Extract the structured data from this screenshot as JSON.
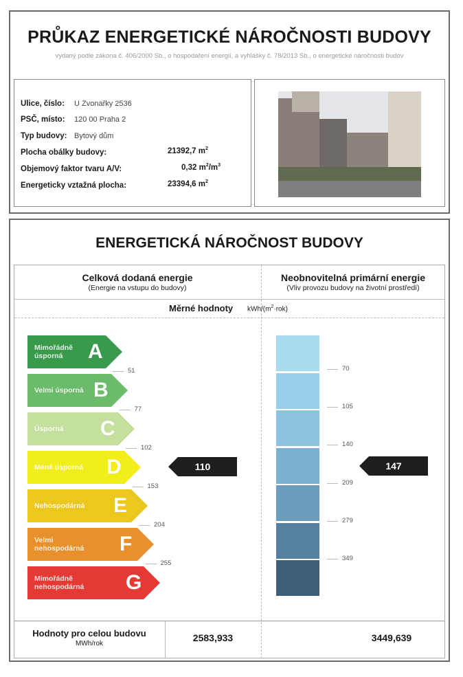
{
  "header": {
    "title": "PRŮKAZ ENERGETICKÉ NÁROČNOSTI BUDOVY",
    "subtitle": "vydaný podle zákona č. 406/2000 Sb., o hospodaření energií, a vyhlášky č. 78/2013 Sb., o energetické náročnosti budov"
  },
  "building": {
    "street_label": "Ulice, číslo:",
    "street": "U Zvonařky 2536",
    "city_label": "PSČ, místo:",
    "city": "120 00  Praha 2",
    "type_label": "Typ budovy:",
    "type": "Bytový dům",
    "envelope_label": "Plocha obálky budovy:",
    "envelope": "21392,7 m",
    "envelope_exp": "2",
    "shape_label": "Objemový faktor tvaru A/V:",
    "shape": "0,32 m",
    "shape_exp": "2",
    "shape_unit": "/m",
    "shape_exp2": "3",
    "area_label": "Energeticky vztažná plocha:",
    "area": "23394,6 m",
    "area_exp": "2"
  },
  "rating": {
    "title": "ENERGETICKÁ NÁROČNOST BUDOVY",
    "left_head": "Celková dodaná energie",
    "left_sub": "(Energie na vstupu do budovy)",
    "right_head": "Neobnovitelná primární energie",
    "right_sub": "(Vliv provozu budovy na životní prostředí)",
    "specific_label": "Měrné hodnoty",
    "unit_a": "kWh/(m",
    "unit_exp": "2",
    "unit_b": "·rok)",
    "classes": [
      {
        "letter": "A",
        "label": "Mimořádně úsporná",
        "color": "#3a9a4c"
      },
      {
        "letter": "B",
        "label": "Velmi úsporná",
        "color": "#6cbb6a"
      },
      {
        "letter": "C",
        "label": "Úsporná",
        "color": "#c5df9c"
      },
      {
        "letter": "D",
        "label": "Méně úsporná",
        "color": "#f2ee1c"
      },
      {
        "letter": "E",
        "label": "Nehospodárná",
        "color": "#ecc71e"
      },
      {
        "letter": "F",
        "label": "Velmi nehospodárná",
        "color": "#e8902c"
      },
      {
        "letter": "G",
        "label": "Mimořádně nehospodárná",
        "color": "#e53a33"
      }
    ],
    "left_thresholds": [
      "51",
      "77",
      "102",
      "153",
      "204",
      "255"
    ],
    "right_thresholds": [
      "70",
      "105",
      "140",
      "209",
      "279",
      "349"
    ],
    "right_colors": [
      "#a9dbef",
      "#97d0e8",
      "#8cc3df",
      "#7ab0d0",
      "#6c9bbd",
      "#56809f",
      "#3f5f79"
    ],
    "left_value": "110",
    "right_value": "147",
    "total_label": "Hodnoty pro celou budovu",
    "total_unit": "MWh/rok",
    "total_left": "2583,933",
    "total_right": "3449,639"
  }
}
